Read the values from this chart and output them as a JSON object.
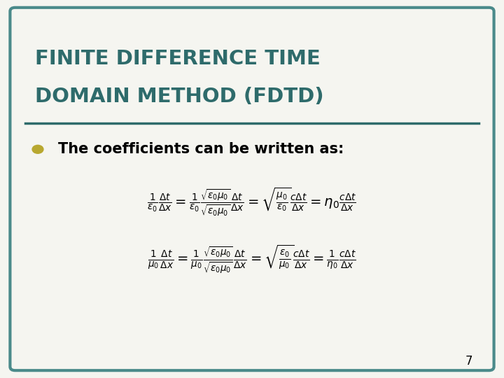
{
  "title_line1": "FINITE DIFFERENCE TIME",
  "title_line2": "DOMAIN METHOD (FDTD)",
  "title_color": "#2E6B6B",
  "background_color": "#F5F5F0",
  "border_color": "#4A8A8A",
  "bullet_text": "The coefficients can be written as:",
  "bullet_color": "#B8A830",
  "page_number": "7",
  "figsize": [
    7.2,
    5.4
  ],
  "dpi": 100
}
